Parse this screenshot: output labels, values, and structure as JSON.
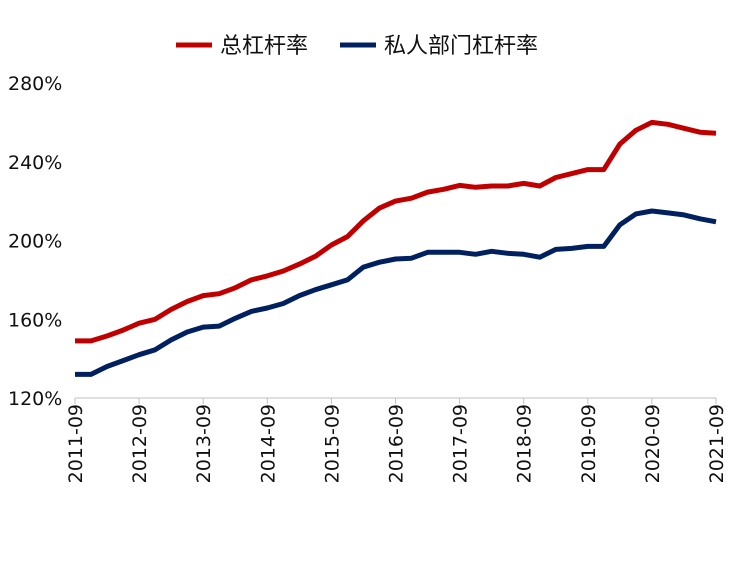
{
  "chart_data": {
    "type": "line",
    "title": "",
    "xlabel": "",
    "ylabel": "",
    "ylim": [
      120,
      280
    ],
    "yticks": [
      "120%",
      "160%",
      "200%",
      "240%",
      "280%"
    ],
    "ytick_values": [
      120,
      160,
      200,
      240,
      280
    ],
    "xtick_labels": [
      "2011-09",
      "2012-09",
      "2013-09",
      "2014-09",
      "2015-09",
      "2016-09",
      "2017-09",
      "2018-09",
      "2019-09",
      "2020-09",
      "2021-09"
    ],
    "legend_position": "top",
    "x": [
      "2011-09",
      "2011-12",
      "2012-03",
      "2012-06",
      "2012-09",
      "2012-12",
      "2013-03",
      "2013-06",
      "2013-09",
      "2013-12",
      "2014-03",
      "2014-06",
      "2014-09",
      "2014-12",
      "2015-03",
      "2015-06",
      "2015-09",
      "2015-12",
      "2016-03",
      "2016-06",
      "2016-09",
      "2016-12",
      "2017-03",
      "2017-06",
      "2017-09",
      "2017-12",
      "2018-03",
      "2018-06",
      "2018-09",
      "2018-12",
      "2019-03",
      "2019-06",
      "2019-09",
      "2019-12",
      "2020-03",
      "2020-06",
      "2020-09",
      "2020-12",
      "2021-03",
      "2021-06",
      "2021-09"
    ],
    "series": [
      {
        "name": "总杠杆率",
        "color": "#C00000",
        "values": [
          149,
          149,
          151.5,
          154.5,
          158,
          160,
          165,
          169,
          172,
          173,
          176,
          180,
          182,
          184.5,
          188,
          192,
          197.7,
          202,
          210,
          216.5,
          220,
          221.5,
          224.6,
          226,
          228,
          227,
          227.7,
          227.7,
          229,
          227.7,
          232,
          234,
          236,
          236,
          249,
          256,
          260,
          259,
          257,
          255,
          254.5
        ]
      },
      {
        "name": "私人部门杠杆率",
        "color": "#002060",
        "values": [
          132,
          132,
          136,
          139,
          142,
          144.5,
          149.5,
          153.5,
          156,
          156.5,
          160.5,
          164,
          165.7,
          168,
          172,
          175,
          177.5,
          180,
          186.5,
          189,
          190.6,
          191,
          194,
          194,
          194,
          193,
          194.5,
          193.5,
          193,
          191.5,
          195.5,
          196,
          197,
          197,
          208,
          213.5,
          215,
          214,
          213,
          211,
          209.5
        ]
      }
    ]
  }
}
